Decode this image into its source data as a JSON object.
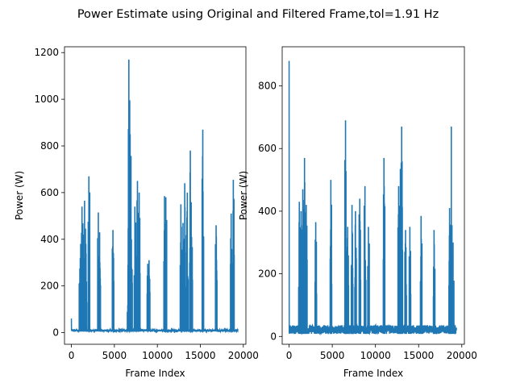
{
  "figure": {
    "title": "Power Estimate using Original and Filtered Frame,tol=1.91 Hz"
  },
  "colors": {
    "line": "#1f77b4",
    "axes": "#000000",
    "background": "#ffffff"
  },
  "chart_data": [
    {
      "type": "line",
      "panel": "left",
      "xlabel": "Frame Index",
      "ylabel": "Power (W)",
      "xlim": [
        -800,
        20300
      ],
      "ylim": [
        -50,
        1225
      ],
      "xticks": [
        0,
        5000,
        10000,
        15000,
        20000
      ],
      "xtick_labels": [
        "0",
        "5000",
        "10000",
        "15000",
        "20000"
      ],
      "yticks": [
        0,
        200,
        400,
        600,
        800,
        1000,
        1200
      ],
      "ytick_labels": [
        "0",
        "200",
        "400",
        "600",
        "800",
        "1000",
        "1200"
      ],
      "baseline": 5,
      "noise": 8,
      "start_spike": {
        "x": 0,
        "y": 60
      },
      "n_frames": 19400,
      "peaks": [
        {
          "x": 1000,
          "y": 275
        },
        {
          "x": 1100,
          "y": 380
        },
        {
          "x": 1250,
          "y": 540
        },
        {
          "x": 1400,
          "y": 420
        },
        {
          "x": 1550,
          "y": 565
        },
        {
          "x": 1700,
          "y": 380
        },
        {
          "x": 2050,
          "y": 670
        },
        {
          "x": 3150,
          "y": 515
        },
        {
          "x": 3300,
          "y": 430
        },
        {
          "x": 4850,
          "y": 440
        },
        {
          "x": 6600,
          "y": 290
        },
        {
          "x": 6700,
          "y": 1170
        },
        {
          "x": 6850,
          "y": 850
        },
        {
          "x": 7000,
          "y": 400
        },
        {
          "x": 7400,
          "y": 540
        },
        {
          "x": 7700,
          "y": 650
        },
        {
          "x": 7900,
          "y": 600
        },
        {
          "x": 8900,
          "y": 295
        },
        {
          "x": 9050,
          "y": 310
        },
        {
          "x": 10850,
          "y": 585
        },
        {
          "x": 11000,
          "y": 580
        },
        {
          "x": 12750,
          "y": 550
        },
        {
          "x": 13000,
          "y": 470
        },
        {
          "x": 13200,
          "y": 640
        },
        {
          "x": 13500,
          "y": 600
        },
        {
          "x": 13850,
          "y": 780
        },
        {
          "x": 14000,
          "y": 410
        },
        {
          "x": 15300,
          "y": 870
        },
        {
          "x": 16850,
          "y": 460
        },
        {
          "x": 18600,
          "y": 510
        },
        {
          "x": 18850,
          "y": 655
        }
      ]
    },
    {
      "type": "line",
      "panel": "right",
      "xlabel": "Frame Index",
      "ylabel": "Power (W)",
      "xlim": [
        -800,
        20300
      ],
      "ylim": [
        -25,
        925
      ],
      "xticks": [
        0,
        5000,
        10000,
        15000,
        20000
      ],
      "xtick_labels": [
        "0",
        "5000",
        "10000",
        "15000",
        "20000"
      ],
      "yticks": [
        0,
        200,
        400,
        600,
        800
      ],
      "ytick_labels": [
        "0",
        "200",
        "400",
        "600",
        "800"
      ],
      "baseline": 8,
      "noise": 28,
      "start_spike": {
        "x": 0,
        "y": 880
      },
      "n_frames": 19400,
      "peaks": [
        {
          "x": 1200,
          "y": 430
        },
        {
          "x": 1400,
          "y": 400
        },
        {
          "x": 1600,
          "y": 470
        },
        {
          "x": 1800,
          "y": 570
        },
        {
          "x": 2000,
          "y": 420
        },
        {
          "x": 3100,
          "y": 365
        },
        {
          "x": 4850,
          "y": 500
        },
        {
          "x": 6550,
          "y": 690
        },
        {
          "x": 6800,
          "y": 350
        },
        {
          "x": 7300,
          "y": 420
        },
        {
          "x": 7700,
          "y": 400
        },
        {
          "x": 8200,
          "y": 440
        },
        {
          "x": 8800,
          "y": 480
        },
        {
          "x": 9200,
          "y": 350
        },
        {
          "x": 11000,
          "y": 570
        },
        {
          "x": 12700,
          "y": 480
        },
        {
          "x": 12900,
          "y": 535
        },
        {
          "x": 13050,
          "y": 670
        },
        {
          "x": 13500,
          "y": 340
        },
        {
          "x": 14000,
          "y": 350
        },
        {
          "x": 15300,
          "y": 385
        },
        {
          "x": 16800,
          "y": 340
        },
        {
          "x": 18600,
          "y": 410
        },
        {
          "x": 18800,
          "y": 670
        },
        {
          "x": 19000,
          "y": 300
        }
      ]
    }
  ]
}
